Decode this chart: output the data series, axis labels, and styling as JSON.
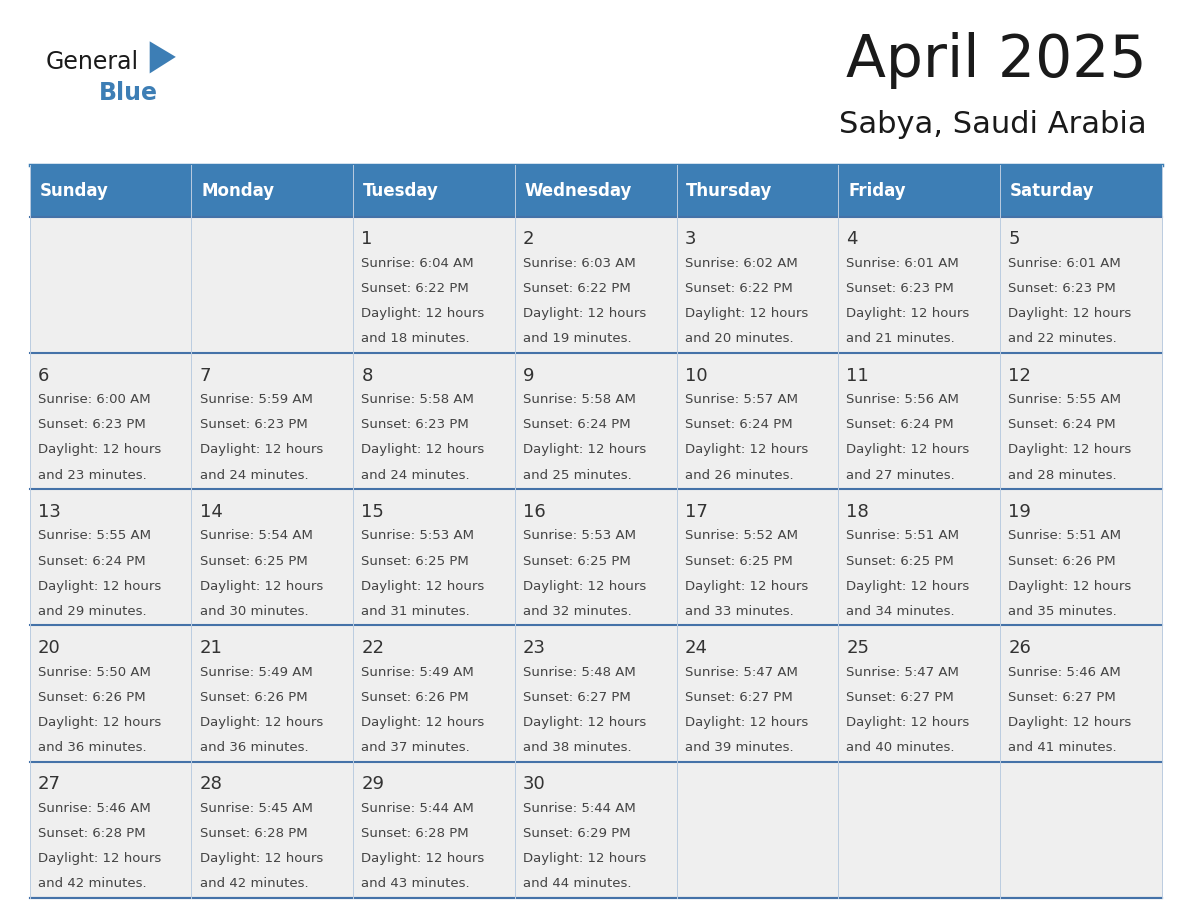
{
  "title": "April 2025",
  "subtitle": "Sabya, Saudi Arabia",
  "header_bg": "#3d7eb5",
  "header_text_color": "#ffffff",
  "cell_bg": "#efefef",
  "border_color": "#4472a8",
  "row_line_color": "#4472a8",
  "text_color": "#444444",
  "day_num_color": "#333333",
  "days_of_week": [
    "Sunday",
    "Monday",
    "Tuesday",
    "Wednesday",
    "Thursday",
    "Friday",
    "Saturday"
  ],
  "weeks": [
    [
      {
        "day": "",
        "sunrise": "",
        "sunset": "",
        "daylight_l1": "",
        "daylight_l2": ""
      },
      {
        "day": "",
        "sunrise": "",
        "sunset": "",
        "daylight_l1": "",
        "daylight_l2": ""
      },
      {
        "day": "1",
        "sunrise": "Sunrise: 6:04 AM",
        "sunset": "Sunset: 6:22 PM",
        "daylight_l1": "Daylight: 12 hours",
        "daylight_l2": "and 18 minutes."
      },
      {
        "day": "2",
        "sunrise": "Sunrise: 6:03 AM",
        "sunset": "Sunset: 6:22 PM",
        "daylight_l1": "Daylight: 12 hours",
        "daylight_l2": "and 19 minutes."
      },
      {
        "day": "3",
        "sunrise": "Sunrise: 6:02 AM",
        "sunset": "Sunset: 6:22 PM",
        "daylight_l1": "Daylight: 12 hours",
        "daylight_l2": "and 20 minutes."
      },
      {
        "day": "4",
        "sunrise": "Sunrise: 6:01 AM",
        "sunset": "Sunset: 6:23 PM",
        "daylight_l1": "Daylight: 12 hours",
        "daylight_l2": "and 21 minutes."
      },
      {
        "day": "5",
        "sunrise": "Sunrise: 6:01 AM",
        "sunset": "Sunset: 6:23 PM",
        "daylight_l1": "Daylight: 12 hours",
        "daylight_l2": "and 22 minutes."
      }
    ],
    [
      {
        "day": "6",
        "sunrise": "Sunrise: 6:00 AM",
        "sunset": "Sunset: 6:23 PM",
        "daylight_l1": "Daylight: 12 hours",
        "daylight_l2": "and 23 minutes."
      },
      {
        "day": "7",
        "sunrise": "Sunrise: 5:59 AM",
        "sunset": "Sunset: 6:23 PM",
        "daylight_l1": "Daylight: 12 hours",
        "daylight_l2": "and 24 minutes."
      },
      {
        "day": "8",
        "sunrise": "Sunrise: 5:58 AM",
        "sunset": "Sunset: 6:23 PM",
        "daylight_l1": "Daylight: 12 hours",
        "daylight_l2": "and 24 minutes."
      },
      {
        "day": "9",
        "sunrise": "Sunrise: 5:58 AM",
        "sunset": "Sunset: 6:24 PM",
        "daylight_l1": "Daylight: 12 hours",
        "daylight_l2": "and 25 minutes."
      },
      {
        "day": "10",
        "sunrise": "Sunrise: 5:57 AM",
        "sunset": "Sunset: 6:24 PM",
        "daylight_l1": "Daylight: 12 hours",
        "daylight_l2": "and 26 minutes."
      },
      {
        "day": "11",
        "sunrise": "Sunrise: 5:56 AM",
        "sunset": "Sunset: 6:24 PM",
        "daylight_l1": "Daylight: 12 hours",
        "daylight_l2": "and 27 minutes."
      },
      {
        "day": "12",
        "sunrise": "Sunrise: 5:55 AM",
        "sunset": "Sunset: 6:24 PM",
        "daylight_l1": "Daylight: 12 hours",
        "daylight_l2": "and 28 minutes."
      }
    ],
    [
      {
        "day": "13",
        "sunrise": "Sunrise: 5:55 AM",
        "sunset": "Sunset: 6:24 PM",
        "daylight_l1": "Daylight: 12 hours",
        "daylight_l2": "and 29 minutes."
      },
      {
        "day": "14",
        "sunrise": "Sunrise: 5:54 AM",
        "sunset": "Sunset: 6:25 PM",
        "daylight_l1": "Daylight: 12 hours",
        "daylight_l2": "and 30 minutes."
      },
      {
        "day": "15",
        "sunrise": "Sunrise: 5:53 AM",
        "sunset": "Sunset: 6:25 PM",
        "daylight_l1": "Daylight: 12 hours",
        "daylight_l2": "and 31 minutes."
      },
      {
        "day": "16",
        "sunrise": "Sunrise: 5:53 AM",
        "sunset": "Sunset: 6:25 PM",
        "daylight_l1": "Daylight: 12 hours",
        "daylight_l2": "and 32 minutes."
      },
      {
        "day": "17",
        "sunrise": "Sunrise: 5:52 AM",
        "sunset": "Sunset: 6:25 PM",
        "daylight_l1": "Daylight: 12 hours",
        "daylight_l2": "and 33 minutes."
      },
      {
        "day": "18",
        "sunrise": "Sunrise: 5:51 AM",
        "sunset": "Sunset: 6:25 PM",
        "daylight_l1": "Daylight: 12 hours",
        "daylight_l2": "and 34 minutes."
      },
      {
        "day": "19",
        "sunrise": "Sunrise: 5:51 AM",
        "sunset": "Sunset: 6:26 PM",
        "daylight_l1": "Daylight: 12 hours",
        "daylight_l2": "and 35 minutes."
      }
    ],
    [
      {
        "day": "20",
        "sunrise": "Sunrise: 5:50 AM",
        "sunset": "Sunset: 6:26 PM",
        "daylight_l1": "Daylight: 12 hours",
        "daylight_l2": "and 36 minutes."
      },
      {
        "day": "21",
        "sunrise": "Sunrise: 5:49 AM",
        "sunset": "Sunset: 6:26 PM",
        "daylight_l1": "Daylight: 12 hours",
        "daylight_l2": "and 36 minutes."
      },
      {
        "day": "22",
        "sunrise": "Sunrise: 5:49 AM",
        "sunset": "Sunset: 6:26 PM",
        "daylight_l1": "Daylight: 12 hours",
        "daylight_l2": "and 37 minutes."
      },
      {
        "day": "23",
        "sunrise": "Sunrise: 5:48 AM",
        "sunset": "Sunset: 6:27 PM",
        "daylight_l1": "Daylight: 12 hours",
        "daylight_l2": "and 38 minutes."
      },
      {
        "day": "24",
        "sunrise": "Sunrise: 5:47 AM",
        "sunset": "Sunset: 6:27 PM",
        "daylight_l1": "Daylight: 12 hours",
        "daylight_l2": "and 39 minutes."
      },
      {
        "day": "25",
        "sunrise": "Sunrise: 5:47 AM",
        "sunset": "Sunset: 6:27 PM",
        "daylight_l1": "Daylight: 12 hours",
        "daylight_l2": "and 40 minutes."
      },
      {
        "day": "26",
        "sunrise": "Sunrise: 5:46 AM",
        "sunset": "Sunset: 6:27 PM",
        "daylight_l1": "Daylight: 12 hours",
        "daylight_l2": "and 41 minutes."
      }
    ],
    [
      {
        "day": "27",
        "sunrise": "Sunrise: 5:46 AM",
        "sunset": "Sunset: 6:28 PM",
        "daylight_l1": "Daylight: 12 hours",
        "daylight_l2": "and 42 minutes."
      },
      {
        "day": "28",
        "sunrise": "Sunrise: 5:45 AM",
        "sunset": "Sunset: 6:28 PM",
        "daylight_l1": "Daylight: 12 hours",
        "daylight_l2": "and 42 minutes."
      },
      {
        "day": "29",
        "sunrise": "Sunrise: 5:44 AM",
        "sunset": "Sunset: 6:28 PM",
        "daylight_l1": "Daylight: 12 hours",
        "daylight_l2": "and 43 minutes."
      },
      {
        "day": "30",
        "sunrise": "Sunrise: 5:44 AM",
        "sunset": "Sunset: 6:29 PM",
        "daylight_l1": "Daylight: 12 hours",
        "daylight_l2": "and 44 minutes."
      },
      {
        "day": "",
        "sunrise": "",
        "sunset": "",
        "daylight_l1": "",
        "daylight_l2": ""
      },
      {
        "day": "",
        "sunrise": "",
        "sunset": "",
        "daylight_l1": "",
        "daylight_l2": ""
      },
      {
        "day": "",
        "sunrise": "",
        "sunset": "",
        "daylight_l1": "",
        "daylight_l2": ""
      }
    ]
  ],
  "logo_color_general": "#1a1a1a",
  "logo_color_blue": "#3d7eb5",
  "logo_triangle_color": "#3d7eb5",
  "title_fontsize": 42,
  "subtitle_fontsize": 22,
  "header_fontsize": 12,
  "day_num_fontsize": 13,
  "cell_text_fontsize": 9.5
}
